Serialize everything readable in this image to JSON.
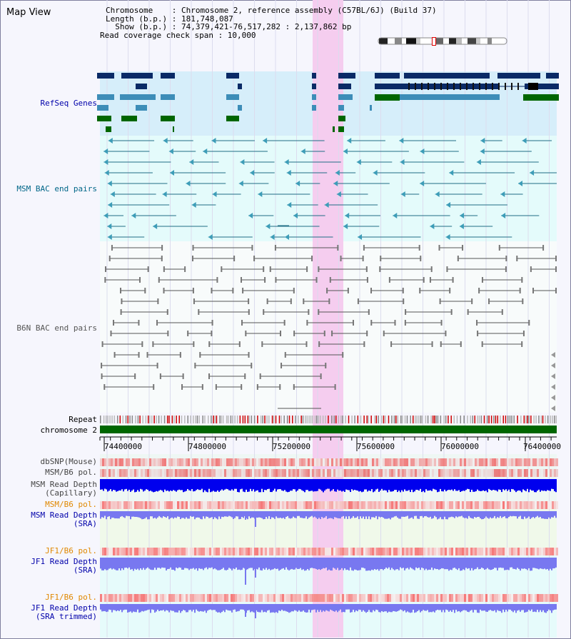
{
  "header": {
    "title": "Map View",
    "chromosome_line": "Chromosome    : Chromosome 2, reference assembly (C57BL/6J) (Build 37)",
    "length_line": "Length (b.p.) : 181,748,087",
    "show_line": "  Show (b.p.) : 74,379,421-76,517,282 : 2,137,862 bp",
    "coverage_line": "Read coverage check span : 10,000"
  },
  "tracks": {
    "refseq": "RefSeq Genes",
    "msm_bac": "MSM BAC end pairs",
    "b6n_bac": "B6N BAC end pairs",
    "repeat": "Repeat",
    "chromosome": "chromosome 2",
    "dbsnp": "dbSNP(Mouse)",
    "msm_pol": "MSM/B6 pol.",
    "msm_depth_cap_1": "MSM Read Depth",
    "msm_depth_cap_2": "(Capillary)",
    "msm_pol_2": "MSM/B6 pol.",
    "msm_depth_sra_1": "MSM Read Depth",
    "msm_depth_sra_2": "(SRA)",
    "jf1_pol": "JF1/B6 pol.",
    "jf1_depth_1": "JF1 Read Depth",
    "jf1_depth_2": "(SRA)",
    "jf1_pol_2": "JF1/B6 pol.",
    "jf1_trim_1": "JF1 Read Depth",
    "jf1_trim_2": "(SRA trimmed)"
  },
  "axis": {
    "ticks": [
      "74400000",
      "74800000",
      "75200000",
      "75600000",
      "76000000",
      "76400000"
    ]
  },
  "colors": {
    "refseq_bg": "#d6eefa",
    "bac_bg": "#e4fbfb",
    "highlight": "#f5cdef",
    "msm_gene": "#0a2a66",
    "blue_gene": "#3d8db8",
    "green_gene": "#006600",
    "depth_blue": "#0000ee",
    "depth_light": "#7878f0",
    "label_blue": "#0000aa",
    "label_orange": "#e08800",
    "label_teal": "#006688"
  }
}
